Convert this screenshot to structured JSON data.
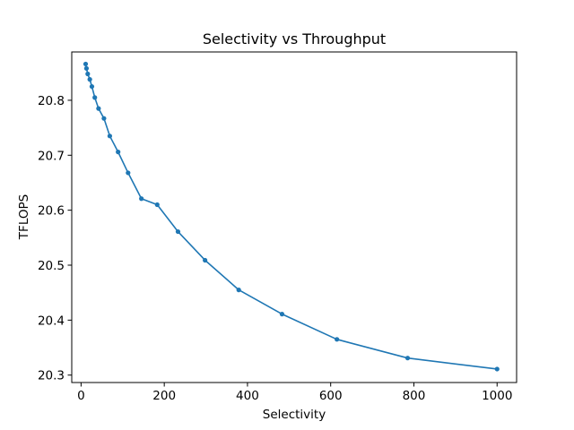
{
  "chart_data": {
    "type": "line",
    "title": "Selectivity vs Throughput",
    "xlabel": "Selectivity",
    "ylabel": "TFLOPS",
    "xlim": [
      -22.4,
      1046.9
    ],
    "ylim": [
      20.2865,
      20.8879
    ],
    "xticks": [
      0,
      200,
      400,
      600,
      800,
      1000
    ],
    "yticks": [
      20.3,
      20.4,
      20.5,
      20.6,
      20.7,
      20.8
    ],
    "xtick_labels": [
      "0",
      "200",
      "400",
      "600",
      "800",
      "1000"
    ],
    "ytick_labels": [
      "20.3",
      "20.4",
      "20.5",
      "20.6",
      "20.7",
      "20.8"
    ],
    "grid": false,
    "color": "#1f77b4",
    "series": [
      {
        "x": [
          11.0,
          13.0,
          16.0,
          21.0,
          26.0,
          33.0,
          42.0,
          55.0,
          69.0,
          89.0,
          113.0,
          145.0,
          183.0,
          233.0,
          298.0,
          379.0,
          483.0,
          615.0,
          785.0,
          1000.0
        ],
        "y": [
          20.866,
          20.858,
          20.848,
          20.838,
          20.825,
          20.805,
          20.785,
          20.767,
          20.735,
          20.706,
          20.668,
          20.621,
          20.61,
          20.561,
          20.509,
          20.455,
          20.411,
          20.365,
          20.331,
          20.311
        ],
        "marker": "o"
      }
    ]
  }
}
